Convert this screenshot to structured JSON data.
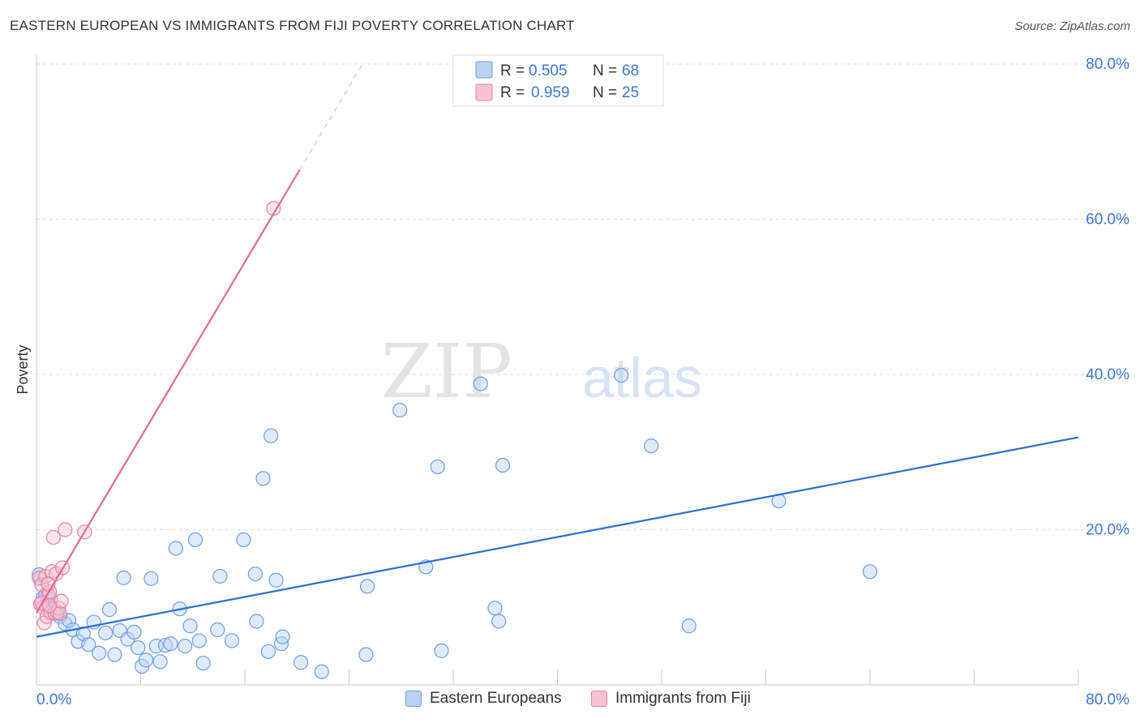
{
  "title": "EASTERN EUROPEAN VS IMMIGRANTS FROM FIJI POVERTY CORRELATION CHART",
  "source": "Source: ZipAtlas.com",
  "watermark": {
    "zip": "ZIP",
    "atlas": "atlas"
  },
  "chart_data": {
    "type": "scatter",
    "xlabel": "",
    "ylabel": "Poverty",
    "xlim": [
      0,
      80
    ],
    "ylim": [
      0,
      80
    ],
    "x_tick_labels": [
      "0.0%",
      "80.0%"
    ],
    "y_tick_labels": [
      "20.0%",
      "40.0%",
      "60.0%",
      "80.0%"
    ],
    "y_ticks": [
      20,
      40,
      60,
      80
    ],
    "grid": true,
    "legend_stats": [
      {
        "r_label": "R =",
        "r_value": "0.505",
        "n_label": "N =",
        "n_value": "68",
        "color": "#6d9ee6",
        "fill": "#b9d1f3"
      },
      {
        "r_label": "R =",
        "r_value": "0.959",
        "n_label": "N =",
        "n_value": "25",
        "color": "#e882a5",
        "fill": "#f7c3d4"
      }
    ],
    "series": [
      {
        "name": "Eastern Europeans",
        "color": "#6d9ee6",
        "fill": "#b9d1f3",
        "trend": {
          "x0": 0,
          "y0": 6.2,
          "x1": 80,
          "y1": 31.9,
          "solid_to": 80
        },
        "points": [
          [
            0.3,
            13.7
          ],
          [
            0.5,
            11.2
          ],
          [
            0.7,
            11.6
          ],
          [
            0.9,
            10.4
          ],
          [
            1.1,
            11.0
          ],
          [
            1.3,
            9.8
          ],
          [
            1.5,
            9.2
          ],
          [
            1.8,
            8.8
          ],
          [
            2.2,
            7.9
          ],
          [
            2.5,
            8.3
          ],
          [
            2.8,
            7.1
          ],
          [
            3.2,
            5.6
          ],
          [
            3.6,
            6.6
          ],
          [
            4.0,
            5.2
          ],
          [
            4.4,
            8.1
          ],
          [
            4.8,
            4.1
          ],
          [
            5.3,
            6.7
          ],
          [
            5.6,
            9.7
          ],
          [
            6.0,
            3.9
          ],
          [
            6.4,
            7.0
          ],
          [
            6.7,
            13.8
          ],
          [
            7.0,
            5.9
          ],
          [
            7.5,
            6.8
          ],
          [
            7.8,
            4.8
          ],
          [
            8.1,
            2.4
          ],
          [
            8.4,
            3.2
          ],
          [
            8.8,
            13.7
          ],
          [
            9.2,
            5.0
          ],
          [
            9.5,
            3.0
          ],
          [
            9.9,
            5.1
          ],
          [
            10.3,
            5.3
          ],
          [
            10.7,
            17.6
          ],
          [
            11.0,
            9.8
          ],
          [
            11.4,
            5.0
          ],
          [
            11.8,
            7.6
          ],
          [
            12.2,
            18.7
          ],
          [
            12.5,
            5.7
          ],
          [
            12.8,
            2.8
          ],
          [
            13.9,
            7.1
          ],
          [
            14.1,
            14.0
          ],
          [
            15.0,
            5.7
          ],
          [
            15.9,
            18.7
          ],
          [
            16.8,
            14.3
          ],
          [
            16.9,
            8.2
          ],
          [
            17.4,
            26.6
          ],
          [
            17.8,
            4.3
          ],
          [
            18.0,
            32.1
          ],
          [
            18.4,
            13.5
          ],
          [
            18.8,
            5.3
          ],
          [
            18.9,
            6.2
          ],
          [
            20.3,
            2.9
          ],
          [
            21.9,
            1.7
          ],
          [
            25.3,
            3.9
          ],
          [
            25.4,
            12.7
          ],
          [
            27.9,
            35.4
          ],
          [
            29.9,
            15.2
          ],
          [
            30.8,
            28.1
          ],
          [
            31.1,
            4.4
          ],
          [
            34.1,
            38.8
          ],
          [
            35.2,
            9.9
          ],
          [
            35.5,
            8.2
          ],
          [
            35.8,
            28.3
          ],
          [
            44.9,
            39.9
          ],
          [
            47.2,
            30.8
          ],
          [
            50.1,
            7.6
          ],
          [
            57.0,
            23.7
          ],
          [
            64.0,
            14.6
          ],
          [
            0.2,
            14.2
          ]
        ]
      },
      {
        "name": "Immigrants from Fiji",
        "color": "#e882a5",
        "fill": "#f7c3d4",
        "trend": {
          "x0": 0,
          "y0": 9.3,
          "x1": 25,
          "y1": 79.9,
          "solid_to": 20.2
        },
        "points": [
          [
            0.2,
            13.8
          ],
          [
            0.3,
            10.4
          ],
          [
            0.4,
            12.9
          ],
          [
            0.5,
            10.0
          ],
          [
            0.6,
            8.0
          ],
          [
            0.7,
            14.0
          ],
          [
            0.8,
            8.8
          ],
          [
            0.9,
            11.6
          ],
          [
            1.0,
            12.0
          ],
          [
            1.1,
            9.3
          ],
          [
            1.2,
            14.6
          ],
          [
            1.3,
            19.0
          ],
          [
            1.4,
            9.3
          ],
          [
            1.5,
            14.3
          ],
          [
            1.6,
            9.4
          ],
          [
            1.7,
            9.9
          ],
          [
            1.8,
            9.2
          ],
          [
            1.9,
            10.8
          ],
          [
            2.0,
            15.1
          ],
          [
            2.2,
            20.0
          ],
          [
            0.4,
            10.6
          ],
          [
            0.9,
            13.0
          ],
          [
            1.0,
            10.2
          ],
          [
            3.7,
            19.7
          ],
          [
            18.2,
            61.4
          ]
        ]
      }
    ]
  }
}
